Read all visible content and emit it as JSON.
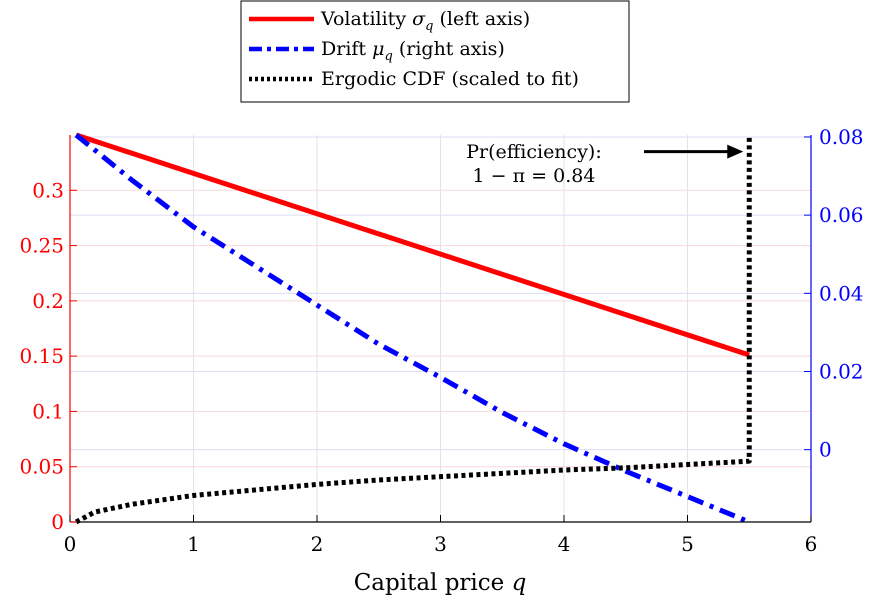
{
  "chart_data": {
    "type": "line",
    "xlabel": "Capital price q",
    "xlim": [
      0,
      6
    ],
    "x_ticks": [
      "0",
      "1",
      "2",
      "3",
      "4",
      "5",
      "6"
    ],
    "x_tick_values": [
      0,
      1,
      2,
      3,
      4,
      5,
      6
    ],
    "left_axis": {
      "color": "#ff0000",
      "ylim": [
        0,
        0.35
      ],
      "tick_values": [
        0,
        0.05,
        0.1,
        0.15,
        0.2,
        0.25,
        0.3
      ],
      "tick_labels": [
        "0",
        "0.05",
        "0.1",
        "0.15",
        "0.2",
        "0.25",
        "0.3"
      ]
    },
    "right_axis": {
      "color": "#0000ff",
      "ylim": [
        -0.0185,
        0.0805
      ],
      "tick_values": [
        0,
        0.02,
        0.04,
        0.06,
        0.08
      ],
      "tick_labels": [
        "0",
        "0.02",
        "0.04",
        "0.06",
        "0.08"
      ]
    },
    "grid": true,
    "legend_position": "top-center",
    "series": [
      {
        "name": "Volatility σq (left axis)",
        "axis": "left",
        "color": "#ff0000",
        "style": "solid",
        "x": [
          0.05,
          5.5
        ],
        "y": [
          0.35,
          0.151
        ]
      },
      {
        "name": "Drift μq (right axis)",
        "axis": "right",
        "color": "#0000ff",
        "style": "dashdot",
        "x": [
          0.05,
          0.5,
          1.0,
          1.5,
          2.0,
          2.5,
          3.0,
          3.5,
          4.0,
          4.5,
          5.0,
          5.5
        ],
        "y": [
          0.0805,
          0.069,
          0.057,
          0.047,
          0.037,
          0.027,
          0.0185,
          0.0095,
          0.0015,
          -0.0055,
          -0.012,
          -0.0185
        ]
      },
      {
        "name": "Ergodic CDF (scaled to fit)",
        "axis": "left",
        "color": "#000000",
        "style": "dotted",
        "x": [
          0.05,
          0.2,
          0.5,
          1.0,
          1.5,
          2.0,
          2.5,
          3.0,
          3.5,
          4.0,
          4.5,
          5.0,
          5.5,
          5.5,
          5.5
        ],
        "y": [
          0.0,
          0.009,
          0.016,
          0.024,
          0.029,
          0.034,
          0.038,
          0.041,
          0.044,
          0.047,
          0.049,
          0.052,
          0.055,
          0.215,
          0.35
        ]
      }
    ],
    "annotation": {
      "line1": "Pr(efficiency):",
      "line2": "1 − π = 0.84",
      "arrow_target_x": 5.5,
      "arrow_target_y": 0.335
    }
  },
  "legend": {
    "volatility_prefix": "Volatility ",
    "volatility_symbol": "σ",
    "volatility_sub": "q",
    "volatility_suffix": " (left axis)",
    "drift_prefix": "Drift ",
    "drift_symbol": "μ",
    "drift_sub": "q",
    "drift_suffix": " (right axis)",
    "cdf_label": "Ergodic CDF (scaled to fit)"
  },
  "axis_labels": {
    "x_prefix": "Capital price ",
    "x_var": "q"
  }
}
